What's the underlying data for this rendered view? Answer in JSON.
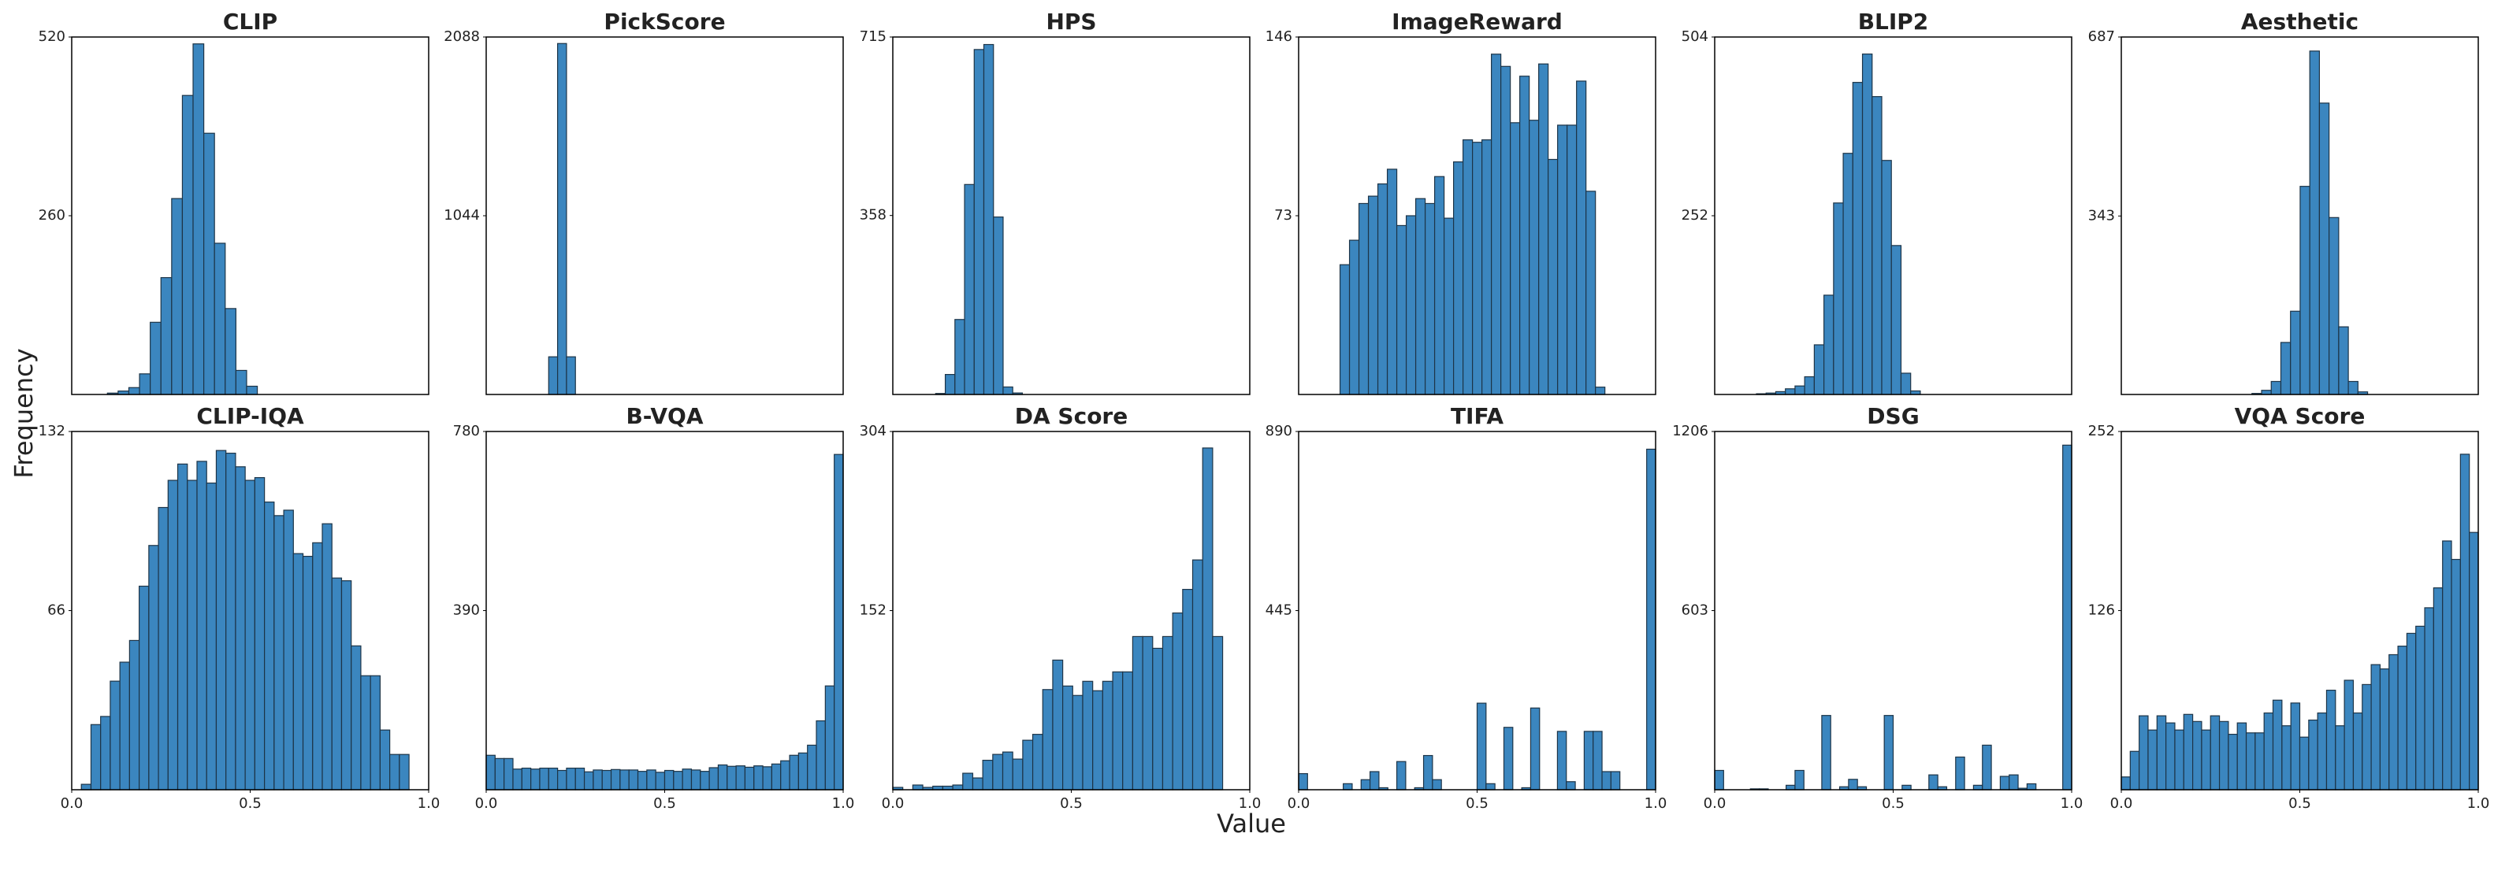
{
  "xlabel": "Value",
  "ylabel": "Frequency",
  "chart_data": [
    {
      "type": "histogram",
      "title": "CLIP",
      "color": "#3b86bf",
      "xlim": [
        0,
        1
      ],
      "ylim": [
        0,
        520
      ],
      "yticks": [
        260,
        520
      ],
      "bins": [
        0.1,
        0.13,
        0.16,
        0.19,
        0.22,
        0.25,
        0.28,
        0.31,
        0.34,
        0.37,
        0.4,
        0.43,
        0.46,
        0.49,
        0.52
      ],
      "values": [
        2,
        5,
        10,
        30,
        105,
        170,
        285,
        435,
        510,
        380,
        220,
        125,
        35,
        12
      ]
    },
    {
      "type": "histogram",
      "title": "PickScore",
      "color": "#3b86bf",
      "xlim": [
        0,
        1
      ],
      "ylim": [
        0,
        2088
      ],
      "yticks": [
        1044,
        2088
      ],
      "bins": [
        0.175,
        0.2,
        0.225,
        0.25
      ],
      "values": [
        220,
        2050,
        220
      ]
    },
    {
      "type": "histogram",
      "title": "HPS",
      "color": "#3b86bf",
      "xlim": [
        0,
        1
      ],
      "ylim": [
        0,
        715
      ],
      "yticks": [
        358,
        715
      ],
      "bins": [
        0.12,
        0.147,
        0.174,
        0.201,
        0.228,
        0.255,
        0.282,
        0.309,
        0.336,
        0.363
      ],
      "values": [
        2,
        40,
        150,
        420,
        690,
        700,
        355,
        15,
        3
      ]
    },
    {
      "type": "histogram",
      "title": "ImageReward",
      "color": "#3b86bf",
      "xlim": [
        0,
        1
      ],
      "ylim": [
        0,
        146
      ],
      "yticks": [
        73,
        146
      ],
      "bins": [
        0.116,
        0.1425,
        0.169,
        0.1955,
        0.222,
        0.2485,
        0.275,
        0.3015,
        0.328,
        0.3545,
        0.381,
        0.4075,
        0.434,
        0.4605,
        0.487,
        0.5135,
        0.54,
        0.5665,
        0.593,
        0.6195,
        0.646,
        0.6725,
        0.699,
        0.7255,
        0.752,
        0.7785,
        0.805,
        0.8315,
        0.858
      ],
      "values": [
        53,
        63,
        78,
        81,
        86,
        92,
        69,
        73,
        80,
        78,
        89,
        72,
        95,
        104,
        103,
        104,
        139,
        134,
        111,
        130,
        112,
        135,
        96,
        110,
        110,
        128,
        83,
        3
      ]
    },
    {
      "type": "histogram",
      "title": "BLIP2",
      "color": "#3b86bf",
      "xlim": [
        0,
        1
      ],
      "ylim": [
        0,
        504
      ],
      "yticks": [
        252,
        504
      ],
      "bins": [
        0.117,
        0.144,
        0.171,
        0.198,
        0.225,
        0.252,
        0.279,
        0.306,
        0.333,
        0.36,
        0.387,
        0.414,
        0.441,
        0.468,
        0.495,
        0.522,
        0.549,
        0.576
      ],
      "values": [
        1,
        2,
        4,
        8,
        12,
        25,
        70,
        140,
        270,
        340,
        440,
        480,
        420,
        330,
        210,
        30,
        5
      ]
    },
    {
      "type": "histogram",
      "title": "Aesthetic",
      "color": "#3b86bf",
      "xlim": [
        0,
        1
      ],
      "ylim": [
        0,
        687
      ],
      "yticks": [
        343,
        687
      ],
      "bins": [
        0.366,
        0.393,
        0.42,
        0.447,
        0.474,
        0.501,
        0.528,
        0.555,
        0.582,
        0.609,
        0.636,
        0.663,
        0.69
      ],
      "values": [
        2,
        8,
        25,
        100,
        160,
        400,
        660,
        560,
        340,
        130,
        25,
        5
      ]
    },
    {
      "type": "histogram",
      "title": "CLIP-IQA",
      "color": "#3b86bf",
      "xlim": [
        0,
        1
      ],
      "ylim": [
        0,
        132
      ],
      "yticks": [
        66,
        132
      ],
      "xticks": [
        {
          "value": 0,
          "label": "0.0"
        },
        0.5,
        {
          "value": 1,
          "label": "1.0"
        }
      ],
      "bins": [
        0.027,
        0.054,
        0.081,
        0.108,
        0.135,
        0.162,
        0.189,
        0.216,
        0.243,
        0.27,
        0.297,
        0.324,
        0.351,
        0.378,
        0.405,
        0.432,
        0.459,
        0.486,
        0.513,
        0.54,
        0.567,
        0.594,
        0.621,
        0.648,
        0.675,
        0.702,
        0.729,
        0.756,
        0.783,
        0.81,
        0.837,
        0.864,
        0.891,
        0.918,
        0.945
      ],
      "values": [
        2,
        24,
        27,
        40,
        47,
        55,
        75,
        90,
        104,
        114,
        120,
        114,
        121,
        113,
        125,
        124,
        119,
        114,
        115,
        106,
        101,
        103,
        87,
        86,
        91,
        98,
        78,
        77,
        53,
        42,
        42,
        22,
        13,
        13
      ]
    },
    {
      "type": "histogram",
      "title": "B-VQA",
      "color": "#3b86bf",
      "xlim": [
        0,
        1
      ],
      "ylim": [
        0,
        780
      ],
      "yticks": [
        390,
        780
      ],
      "xticks": [
        {
          "value": 0,
          "label": "0.0"
        },
        0.5,
        {
          "value": 1,
          "label": "1.0"
        }
      ],
      "bins": [
        0,
        0.025,
        0.05,
        0.075,
        0.1,
        0.125,
        0.15,
        0.175,
        0.2,
        0.225,
        0.25,
        0.275,
        0.3,
        0.325,
        0.35,
        0.375,
        0.4,
        0.425,
        0.45,
        0.475,
        0.5,
        0.525,
        0.55,
        0.575,
        0.6,
        0.625,
        0.65,
        0.675,
        0.7,
        0.725,
        0.75,
        0.775,
        0.8,
        0.825,
        0.85,
        0.875,
        0.9,
        0.925,
        0.95,
        0.975,
        1
      ],
      "values": [
        75,
        68,
        68,
        45,
        47,
        45,
        47,
        47,
        42,
        47,
        47,
        39,
        43,
        42,
        44,
        43,
        43,
        40,
        43,
        38,
        42,
        40,
        45,
        43,
        40,
        48,
        54,
        51,
        52,
        49,
        52,
        50,
        56,
        63,
        75,
        80,
        97,
        150,
        226,
        730
      ]
    },
    {
      "type": "histogram",
      "title": "DA Score",
      "color": "#3b86bf",
      "xlim": [
        0,
        1
      ],
      "ylim": [
        0,
        304
      ],
      "yticks": [
        152,
        304
      ],
      "xticks": [
        {
          "value": 0,
          "label": "0.0"
        },
        0.5,
        {
          "value": 1,
          "label": "1.0"
        }
      ],
      "bins": [
        0,
        0.028,
        0.056,
        0.084,
        0.112,
        0.14,
        0.168,
        0.196,
        0.224,
        0.252,
        0.28,
        0.308,
        0.336,
        0.364,
        0.392,
        0.42,
        0.448,
        0.476,
        0.504,
        0.532,
        0.56,
        0.588,
        0.616,
        0.644,
        0.672,
        0.7,
        0.728,
        0.756,
        0.784,
        0.812,
        0.84,
        0.868,
        0.896,
        0.924
      ],
      "values": [
        2,
        0,
        4,
        2,
        3,
        3,
        4,
        14,
        10,
        25,
        30,
        32,
        26,
        42,
        47,
        85,
        110,
        88,
        80,
        92,
        84,
        92,
        100,
        100,
        130,
        130,
        120,
        130,
        150,
        170,
        195,
        290,
        130
      ]
    },
    {
      "type": "histogram",
      "title": "TIFA",
      "color": "#3b86bf",
      "xlim": [
        0,
        1
      ],
      "ylim": [
        0,
        890
      ],
      "yticks": [
        445,
        890
      ],
      "xticks": [
        {
          "value": 0,
          "label": "0.0"
        },
        0.5,
        {
          "value": 1,
          "label": "1.0"
        }
      ],
      "bins": [
        0,
        0.025,
        0.05,
        0.075,
        0.1,
        0.125,
        0.15,
        0.175,
        0.2,
        0.225,
        0.25,
        0.275,
        0.3,
        0.325,
        0.35,
        0.375,
        0.4,
        0.425,
        0.45,
        0.475,
        0.5,
        0.525,
        0.55,
        0.575,
        0.6,
        0.625,
        0.65,
        0.675,
        0.7,
        0.725,
        0.75,
        0.775,
        0.8,
        0.825,
        0.85,
        0.875,
        0.9,
        0.925,
        0.95,
        0.975,
        1
      ],
      "values": [
        40,
        0,
        0,
        0,
        0,
        15,
        0,
        25,
        45,
        5,
        0,
        70,
        0,
        5,
        85,
        25,
        0,
        0,
        0,
        0,
        215,
        15,
        0,
        155,
        0,
        5,
        203,
        0,
        0,
        145,
        20,
        0,
        145,
        145,
        45,
        45,
        0,
        0,
        0,
        846
      ]
    },
    {
      "type": "histogram",
      "title": "DSG",
      "color": "#3b86bf",
      "xlim": [
        0,
        1
      ],
      "ylim": [
        0,
        1206
      ],
      "yticks": [
        603,
        1206
      ],
      "xticks": [
        {
          "value": 0,
          "label": "0.0"
        },
        0.5,
        {
          "value": 1,
          "label": "1.0"
        }
      ],
      "bins": [
        0,
        0.025,
        0.05,
        0.075,
        0.1,
        0.125,
        0.15,
        0.175,
        0.2,
        0.225,
        0.25,
        0.275,
        0.3,
        0.325,
        0.35,
        0.375,
        0.4,
        0.425,
        0.45,
        0.475,
        0.5,
        0.525,
        0.55,
        0.575,
        0.6,
        0.625,
        0.65,
        0.675,
        0.7,
        0.725,
        0.75,
        0.775,
        0.8,
        0.825,
        0.85,
        0.875,
        0.9,
        0.925,
        0.95,
        0.975,
        1
      ],
      "values": [
        65,
        0,
        0,
        0,
        3,
        3,
        0,
        0,
        15,
        65,
        0,
        0,
        250,
        0,
        10,
        35,
        10,
        0,
        0,
        250,
        0,
        15,
        0,
        0,
        50,
        10,
        0,
        110,
        0,
        15,
        150,
        0,
        45,
        50,
        5,
        20,
        0,
        0,
        0,
        1160
      ]
    },
    {
      "type": "histogram",
      "title": "VQA Score",
      "color": "#3b86bf",
      "xlim": [
        0,
        1
      ],
      "ylim": [
        0,
        252
      ],
      "yticks": [
        126,
        252
      ],
      "xticks": [
        {
          "value": 0,
          "label": "0.0"
        },
        0.5,
        {
          "value": 1,
          "label": "1.0"
        }
      ],
      "bins": [
        0,
        0.025,
        0.05,
        0.075,
        0.1,
        0.125,
        0.15,
        0.175,
        0.2,
        0.225,
        0.25,
        0.275,
        0.3,
        0.325,
        0.35,
        0.375,
        0.4,
        0.425,
        0.45,
        0.475,
        0.5,
        0.525,
        0.55,
        0.575,
        0.6,
        0.625,
        0.65,
        0.675,
        0.7,
        0.725,
        0.75,
        0.775,
        0.8,
        0.825,
        0.85,
        0.875,
        0.9,
        0.925,
        0.95,
        0.975,
        1
      ],
      "values": [
        9,
        27,
        52,
        42,
        52,
        47,
        42,
        53,
        48,
        42,
        52,
        48,
        39,
        47,
        40,
        40,
        54,
        63,
        45,
        61,
        37,
        49,
        54,
        70,
        45,
        77,
        54,
        74,
        88,
        85,
        95,
        101,
        110,
        115,
        128,
        142,
        175,
        162,
        236,
        181
      ]
    }
  ]
}
